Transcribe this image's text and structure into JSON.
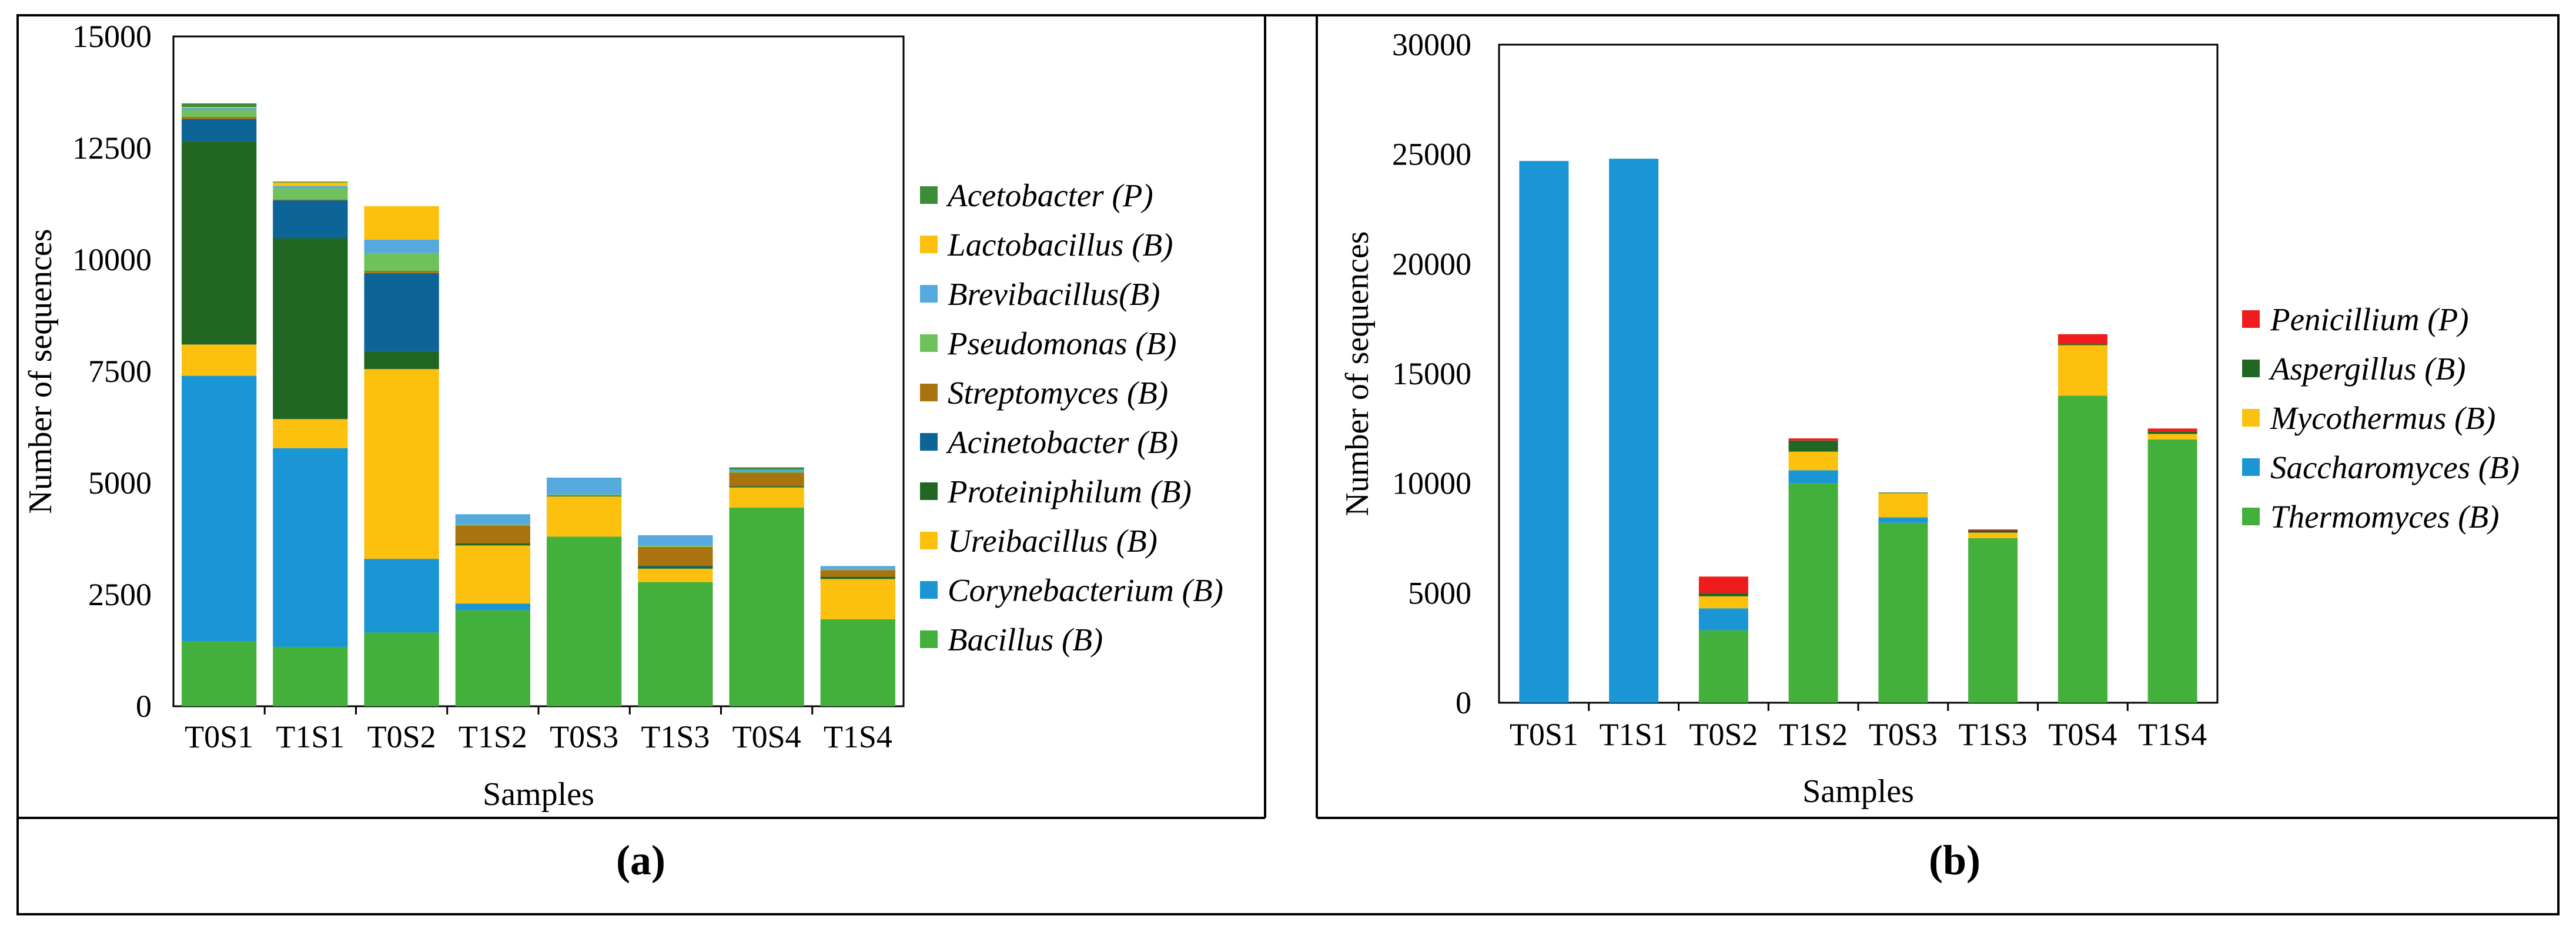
{
  "chart_data": [
    {
      "type": "bar",
      "stacked": true,
      "panel_label": "(a)",
      "title": "",
      "xlabel": "Samples",
      "ylabel": "Number of sequences",
      "ylim": [
        0,
        15000
      ],
      "yticks": [
        0,
        2500,
        5000,
        7500,
        10000,
        12500,
        15000
      ],
      "ytick_labels": [
        "0",
        "2500",
        "5000",
        "7500",
        "10000",
        "12500",
        "15000"
      ],
      "categories": [
        "T0S1",
        "T1S1",
        "T0S2",
        "T1S2",
        "T0S3",
        "T1S3",
        "T0S4",
        "T1S4"
      ],
      "legend_position": "right",
      "series": [
        {
          "name": "Bacillus (B)",
          "color": "#44b03c",
          "values": [
            1450,
            1330,
            1650,
            2150,
            3800,
            2780,
            4450,
            1950
          ]
        },
        {
          "name": "Corynebacterium (B)",
          "color": "#1a96d4",
          "values": [
            5950,
            4450,
            1650,
            150,
            0,
            0,
            0,
            0
          ]
        },
        {
          "name": "Ureibacillus (B)",
          "color": "#fcc10f",
          "values": [
            700,
            650,
            4250,
            1300,
            900,
            300,
            450,
            900
          ]
        },
        {
          "name": "Proteiniphilum (B)",
          "color": "#226623",
          "values": [
            4550,
            4050,
            400,
            50,
            20,
            50,
            30,
            50
          ]
        },
        {
          "name": "Acinetobacter (B)",
          "color": "#0d6496",
          "values": [
            500,
            850,
            1750,
            0,
            0,
            20,
            0,
            0
          ]
        },
        {
          "name": "Streptomyces (B)",
          "color": "#a97310",
          "values": [
            50,
            20,
            50,
            400,
            0,
            420,
            300,
            150
          ]
        },
        {
          "name": "Pseudomonas (B)",
          "color": "#6fc25b",
          "values": [
            150,
            250,
            400,
            20,
            20,
            20,
            20,
            20
          ]
        },
        {
          "name": "Brevibacillus(B)",
          "color": "#55a9dd",
          "values": [
            50,
            50,
            300,
            230,
            380,
            240,
            50,
            70
          ]
        },
        {
          "name": "Lactobacillus (B)",
          "color": "#fcc10f",
          "values": [
            20,
            80,
            750,
            0,
            0,
            0,
            0,
            0
          ]
        },
        {
          "name": "Acetobacter (P)",
          "color": "#3c8d36",
          "values": [
            80,
            20,
            0,
            0,
            0,
            0,
            50,
            0
          ]
        }
      ]
    },
    {
      "type": "bar",
      "stacked": true,
      "panel_label": "(b)",
      "title": "",
      "xlabel": "Samples",
      "ylabel": "Number of sequences",
      "ylim": [
        0,
        30000
      ],
      "yticks": [
        0,
        5000,
        10000,
        15000,
        20000,
        25000,
        30000
      ],
      "ytick_labels": [
        "0",
        "5000",
        "10000",
        "15000",
        "20000",
        "25000",
        "30000"
      ],
      "categories": [
        "T0S1",
        "T1S1",
        "T0S2",
        "T1S2",
        "T0S3",
        "T1S3",
        "T0S4",
        "T1S4"
      ],
      "legend_position": "right",
      "series": [
        {
          "name": "Thermomyces (B)",
          "color": "#44b03c",
          "values": [
            0,
            0,
            3300,
            10000,
            8200,
            7500,
            14000,
            12000
          ]
        },
        {
          "name": "Saccharomyces (B)",
          "color": "#1a96d4",
          "values": [
            24700,
            24800,
            1000,
            600,
            250,
            0,
            0,
            0
          ]
        },
        {
          "name": "Mycothermus (B)",
          "color": "#fcc10f",
          "values": [
            0,
            0,
            550,
            850,
            1100,
            250,
            2300,
            250
          ]
        },
        {
          "name": "Aspergillus (B)",
          "color": "#226623",
          "values": [
            0,
            0,
            150,
            500,
            30,
            100,
            50,
            100
          ]
        },
        {
          "name": "Penicillium (P)",
          "color": "#ee1c1c",
          "values": [
            0,
            0,
            750,
            100,
            0,
            50,
            450,
            150
          ]
        }
      ]
    }
  ]
}
